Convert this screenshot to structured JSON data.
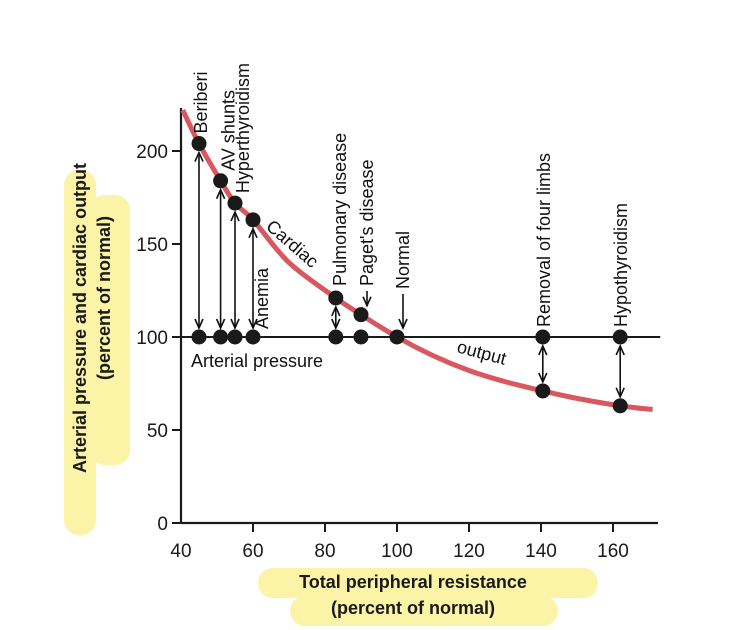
{
  "chart_data": {
    "type": "line",
    "title": "",
    "xlabel": [
      "Total peripheral resistance",
      "(percent of normal)"
    ],
    "ylabel": [
      "Arterial pressure  and cardiac output",
      "(percent of normal)"
    ],
    "xlim": [
      40,
      172
    ],
    "ylim": [
      0,
      225
    ],
    "x_ticks": [
      40,
      60,
      80,
      100,
      120,
      140,
      160
    ],
    "y_ticks": [
      0,
      50,
      100,
      150,
      200
    ],
    "grid": false,
    "curve_color": "#d9575f",
    "highlight_color": "#fbf3a6",
    "series": [
      {
        "name": "Cardiac output",
        "label_parts": [
          "Cardiac",
          "output"
        ],
        "color": "#d9575f",
        "x": [
          40.5,
          45,
          51,
          55,
          60,
          70,
          83,
          90,
          100,
          110,
          120,
          130,
          140.5,
          150,
          162,
          171
        ],
        "y": [
          222,
          204,
          184,
          172,
          163,
          140,
          121,
          112,
          100,
          90,
          82,
          76,
          71,
          67,
          63,
          61
        ]
      },
      {
        "name": "Arterial pressure",
        "label": "Arterial pressure",
        "color": "#111111",
        "x": [
          40,
          172
        ],
        "y": [
          100,
          100
        ]
      }
    ],
    "conditions": [
      {
        "name": "Beriberi",
        "tpr": 45,
        "cardiac_output": 204,
        "arterial_pressure": 100
      },
      {
        "name": "AV shunts",
        "tpr": 51,
        "cardiac_output": 184,
        "arterial_pressure": 100
      },
      {
        "name": "Hyperthyroidism",
        "tpr": 55,
        "cardiac_output": 172,
        "arterial_pressure": 100
      },
      {
        "name": "Anemia",
        "tpr": 60,
        "cardiac_output": 163,
        "arterial_pressure": 100
      },
      {
        "name": "Pulmonary disease",
        "tpr": 83,
        "cardiac_output": 121,
        "arterial_pressure": 100
      },
      {
        "name": "Paget's disease",
        "tpr": 90,
        "cardiac_output": 112,
        "arterial_pressure": 100
      },
      {
        "name": "Normal",
        "tpr": 100,
        "cardiac_output": 100,
        "arterial_pressure": 100
      },
      {
        "name": "Removal of four limbs",
        "tpr": 140.5,
        "cardiac_output": 71,
        "arterial_pressure": 100
      },
      {
        "name": "Hypothyroidism",
        "tpr": 162,
        "cardiac_output": 63,
        "arterial_pressure": 100
      }
    ]
  }
}
